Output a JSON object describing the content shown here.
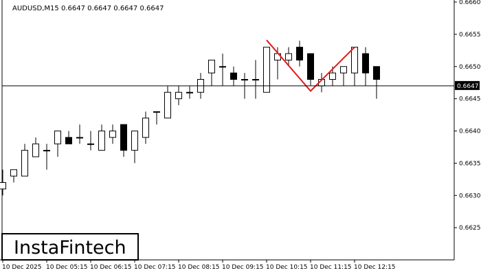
{
  "chart_data": {
    "type": "candlestick",
    "title": "AUDUSD,M15  0.6647 0.6647 0.6647 0.6647",
    "ylim": [
      0.662,
      0.666
    ],
    "y_ticks": [
      "0.6660",
      "0.6655",
      "0.6650",
      "0.6645",
      "0.6640",
      "0.6635",
      "0.6630",
      "0.6625"
    ],
    "y_tick_values": [
      0.666,
      0.6655,
      0.665,
      0.6645,
      0.664,
      0.6635,
      0.663,
      0.6625
    ],
    "x_labels": [
      "10 Dec 2025",
      "10 Dec 05:15",
      "10 Dec 06:15",
      "10 Dec 07:15",
      "10 Dec 08:15",
      "10 Dec 09:15",
      "10 Dec 10:15",
      "10 Dec 11:15",
      "10 Dec 12:15"
    ],
    "x_label_bar_index": [
      0,
      4,
      8,
      12,
      16,
      20,
      24,
      28,
      32
    ],
    "current_price": 0.6647,
    "current_price_label": "0.6647",
    "candles": [
      {
        "o": 0.6631,
        "h": 0.6634,
        "l": 0.663,
        "c": 0.6632
      },
      {
        "o": 0.6633,
        "h": 0.6634,
        "l": 0.6632,
        "c": 0.6634
      },
      {
        "o": 0.6633,
        "h": 0.6638,
        "l": 0.6633,
        "c": 0.6637
      },
      {
        "o": 0.6636,
        "h": 0.6639,
        "l": 0.6636,
        "c": 0.6638
      },
      {
        "o": 0.6637,
        "h": 0.6638,
        "l": 0.6634,
        "c": 0.6637
      },
      {
        "o": 0.6638,
        "h": 0.664,
        "l": 0.6636,
        "c": 0.664
      },
      {
        "o": 0.6639,
        "h": 0.664,
        "l": 0.6638,
        "c": 0.6638
      },
      {
        "o": 0.6639,
        "h": 0.6641,
        "l": 0.6638,
        "c": 0.6639
      },
      {
        "o": 0.6638,
        "h": 0.664,
        "l": 0.6637,
        "c": 0.6638
      },
      {
        "o": 0.6637,
        "h": 0.6641,
        "l": 0.6637,
        "c": 0.664
      },
      {
        "o": 0.6639,
        "h": 0.6641,
        "l": 0.6638,
        "c": 0.664
      },
      {
        "o": 0.6641,
        "h": 0.6641,
        "l": 0.6636,
        "c": 0.6637
      },
      {
        "o": 0.6637,
        "h": 0.664,
        "l": 0.6635,
        "c": 0.664
      },
      {
        "o": 0.6639,
        "h": 0.6643,
        "l": 0.6638,
        "c": 0.6642
      },
      {
        "o": 0.6643,
        "h": 0.6643,
        "l": 0.6641,
        "c": 0.6643
      },
      {
        "o": 0.6642,
        "h": 0.6647,
        "l": 0.6642,
        "c": 0.6646
      },
      {
        "o": 0.6645,
        "h": 0.6647,
        "l": 0.6644,
        "c": 0.6646
      },
      {
        "o": 0.6646,
        "h": 0.6647,
        "l": 0.6645,
        "c": 0.6646
      },
      {
        "o": 0.6646,
        "h": 0.6649,
        "l": 0.6645,
        "c": 0.6648
      },
      {
        "o": 0.6649,
        "h": 0.6651,
        "l": 0.6647,
        "c": 0.6651
      },
      {
        "o": 0.665,
        "h": 0.6652,
        "l": 0.6647,
        "c": 0.665
      },
      {
        "o": 0.6649,
        "h": 0.665,
        "l": 0.6647,
        "c": 0.6648
      },
      {
        "o": 0.6648,
        "h": 0.6649,
        "l": 0.6645,
        "c": 0.6648
      },
      {
        "o": 0.6648,
        "h": 0.6651,
        "l": 0.6645,
        "c": 0.6648
      },
      {
        "o": 0.6646,
        "h": 0.6653,
        "l": 0.6646,
        "c": 0.6653
      },
      {
        "o": 0.6651,
        "h": 0.6653,
        "l": 0.6648,
        "c": 0.6652
      },
      {
        "o": 0.6651,
        "h": 0.6653,
        "l": 0.665,
        "c": 0.6652
      },
      {
        "o": 0.6653,
        "h": 0.6654,
        "l": 0.665,
        "c": 0.6651
      },
      {
        "o": 0.6652,
        "h": 0.6652,
        "l": 0.6647,
        "c": 0.6648
      },
      {
        "o": 0.6647,
        "h": 0.6649,
        "l": 0.6646,
        "c": 0.6648
      },
      {
        "o": 0.6648,
        "h": 0.665,
        "l": 0.6647,
        "c": 0.6649
      },
      {
        "o": 0.6649,
        "h": 0.665,
        "l": 0.6647,
        "c": 0.665
      },
      {
        "o": 0.6649,
        "h": 0.6653,
        "l": 0.6647,
        "c": 0.6653
      },
      {
        "o": 0.6652,
        "h": 0.6653,
        "l": 0.6647,
        "c": 0.6649
      },
      {
        "o": 0.665,
        "h": 0.665,
        "l": 0.6645,
        "c": 0.6648
      }
    ],
    "pattern_line": [
      {
        "i": 24,
        "y": 0.66541
      },
      {
        "i": 28,
        "y": 0.66462
      },
      {
        "i": 32,
        "y": 0.6653
      }
    ],
    "colors": {
      "background": "#ffffff",
      "axis": "#000000",
      "candle_up": "#ffffff",
      "candle_down": "#000000",
      "pattern": "#e01b1b",
      "price_tag": "#000000"
    }
  },
  "branding": {
    "logo_text": "InstaFintech"
  }
}
